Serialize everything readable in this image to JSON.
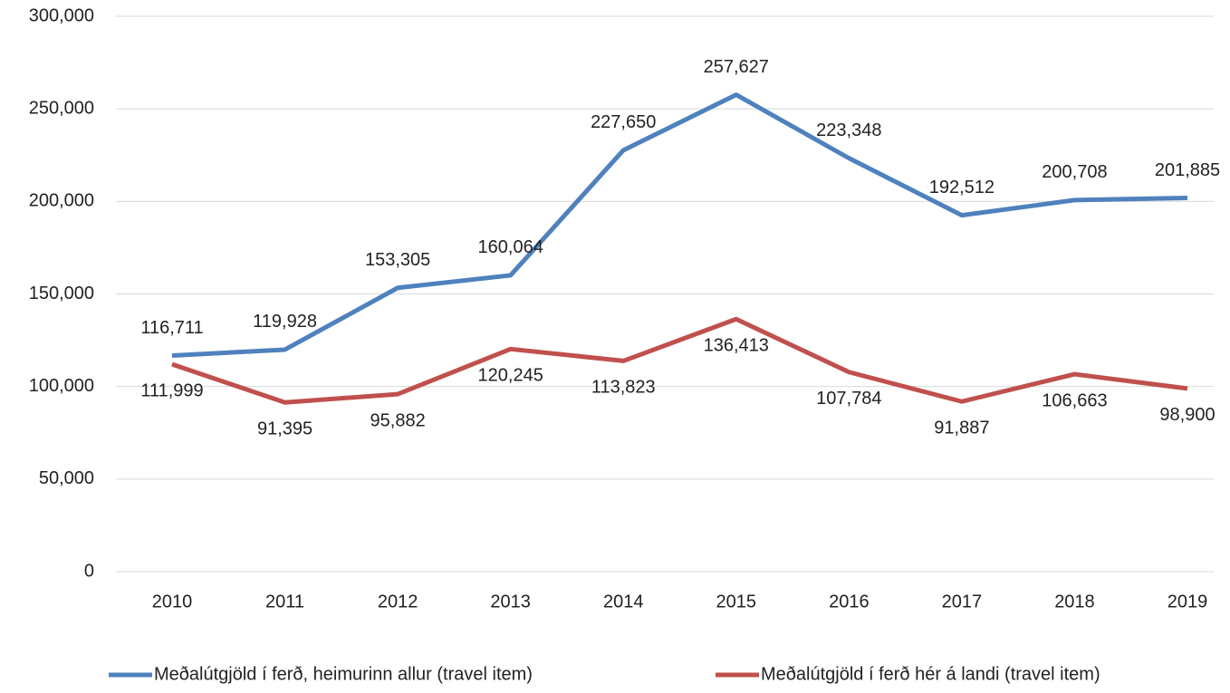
{
  "chart_data": {
    "type": "line",
    "categories": [
      "2010",
      "2011",
      "2012",
      "2013",
      "2014",
      "2015",
      "2016",
      "2017",
      "2018",
      "2019"
    ],
    "series": [
      {
        "name": "Meðalútgjöld í ferð, heimurinn allur (travel item)",
        "color": "#4f81bd",
        "values": [
          116711,
          119928,
          153305,
          160064,
          227650,
          257627,
          223348,
          192512,
          200708,
          201885
        ],
        "value_labels": [
          "116,711",
          "119,928",
          "153,305",
          "160,064",
          "227,650",
          "257,627",
          "223,348",
          "192,512",
          "200,708",
          "201,885"
        ]
      },
      {
        "name": "Meðalútgjöld í ferð hér á landi (travel item)",
        "color": "#c0504d",
        "values": [
          111999,
          91395,
          95882,
          120245,
          113823,
          136413,
          107784,
          91887,
          106663,
          98900
        ],
        "value_labels": [
          "111,999",
          "91,395",
          "95,882",
          "120,245",
          "113,823",
          "136,413",
          "107,784",
          "91,887",
          "106,663",
          "98,900"
        ]
      }
    ],
    "ylim": [
      0,
      300000
    ],
    "yticks": [
      0,
      {
        "value": 50000,
        "label": "50,000"
      },
      {
        "value": 100000,
        "label": "100,000"
      },
      {
        "value": 150000,
        "label": "150,000"
      },
      {
        "value": 200000,
        "label": "200,000"
      },
      {
        "value": 250000,
        "label": "250,000"
      },
      {
        "value": 300000,
        "label": "300,000"
      }
    ],
    "grid": true,
    "legend": "bottom"
  }
}
